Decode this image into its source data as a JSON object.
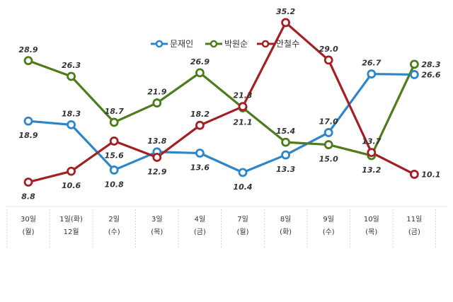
{
  "chart_data": {
    "type": "line",
    "title": "",
    "xlabel": "",
    "ylabel": "",
    "ylim": [
      5,
      38
    ],
    "grid": false,
    "legend_position": "top-center",
    "categories": [
      [
        "30일",
        "(월)"
      ],
      [
        "1일(화)",
        "12월"
      ],
      [
        "2일",
        "(수)"
      ],
      [
        "3일",
        "(목)"
      ],
      [
        "4일",
        "(금)"
      ],
      [
        "7일",
        "(월)"
      ],
      [
        "8일",
        "(화)"
      ],
      [
        "9일",
        "(수)"
      ],
      [
        "10일",
        "(목)"
      ],
      [
        "11일",
        "(금)"
      ]
    ],
    "series": [
      {
        "name": "문재인",
        "color": "#2e86c8",
        "values": [
          18.9,
          18.3,
          10.8,
          13.8,
          13.6,
          10.4,
          13.3,
          17.0,
          26.7,
          26.6
        ]
      },
      {
        "name": "박원순",
        "color": "#4e7b1c",
        "values": [
          28.9,
          26.3,
          18.7,
          21.9,
          26.9,
          21.1,
          15.4,
          15.0,
          13.2,
          28.3
        ]
      },
      {
        "name": "안철수",
        "color": "#a31f24",
        "values": [
          8.8,
          10.6,
          15.6,
          12.9,
          18.2,
          21.3,
          35.2,
          29.0,
          13.7,
          10.1
        ]
      }
    ]
  }
}
